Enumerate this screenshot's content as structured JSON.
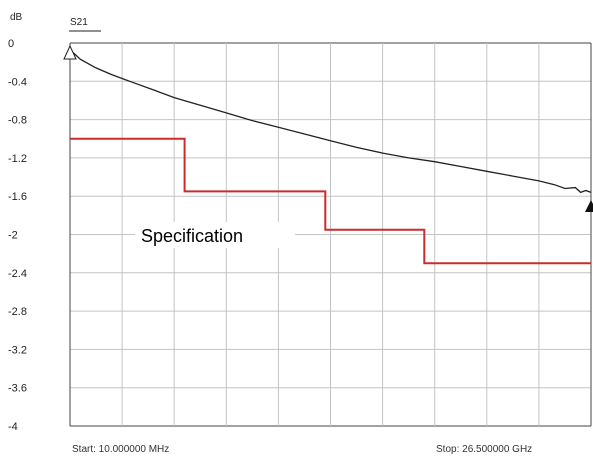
{
  "chart_data": {
    "type": "line",
    "unit_label": "dB",
    "trace_label": "S21",
    "start_label": "Start: 10.000000 MHz",
    "stop_label": "Stop: 26.500000 GHz",
    "annotation": "Specification",
    "ylim": [
      -4,
      0
    ],
    "y_ticks": [
      "0",
      "-0.4",
      "-0.8",
      "-1.2",
      "-1.6",
      "-2",
      "-2.4",
      "-2.8",
      "-3.2",
      "-3.6",
      "-4"
    ],
    "x_divisions": 10,
    "grid": true,
    "colors": {
      "measured": "#222222",
      "spec": "#cc2b2b",
      "grid": "#c4c4c4"
    },
    "series": [
      {
        "x_fraction": [
          0,
          0.01,
          0.02,
          0.05,
          0.08,
          0.12,
          0.16,
          0.2,
          0.25,
          0.3,
          0.35,
          0.4,
          0.45,
          0.5,
          0.55,
          0.6,
          0.65,
          0.7,
          0.75,
          0.8,
          0.85,
          0.9,
          0.93,
          0.95,
          0.97,
          0.98,
          0.99,
          1.0
        ],
        "values": [
          -0.07,
          -0.12,
          -0.17,
          -0.26,
          -0.33,
          -0.41,
          -0.49,
          -0.57,
          -0.65,
          -0.73,
          -0.81,
          -0.88,
          -0.95,
          -1.02,
          -1.09,
          -1.15,
          -1.2,
          -1.24,
          -1.29,
          -1.34,
          -1.39,
          -1.44,
          -1.48,
          -1.52,
          -1.51,
          -1.56,
          -1.54,
          -1.56
        ]
      },
      {
        "x_fraction": [
          0,
          0.22,
          0.22,
          0.49,
          0.49,
          0.68,
          0.68,
          1.0
        ],
        "values": [
          -1.0,
          -1.0,
          -1.55,
          -1.55,
          -1.95,
          -1.95,
          -2.3,
          -2.3
        ]
      }
    ]
  }
}
